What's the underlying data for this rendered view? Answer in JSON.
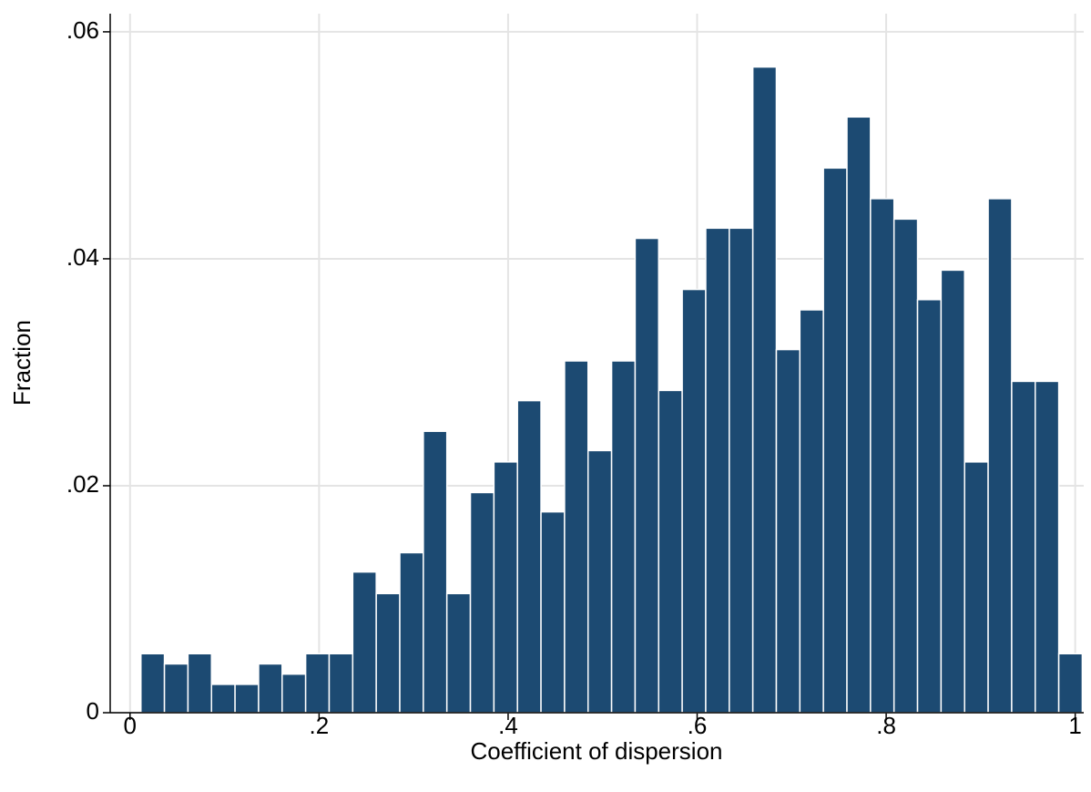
{
  "chart_data": {
    "type": "histogram",
    "xlabel": "Coefficient of dispersion",
    "ylabel": "Fraction",
    "bins": [
      0.0115,
      0.0364,
      0.0613,
      0.0862,
      0.1111,
      0.136,
      0.1609,
      0.1858,
      0.2107,
      0.2356,
      0.2605,
      0.2854,
      0.3103,
      0.3352,
      0.3601,
      0.385,
      0.4099,
      0.4348,
      0.4597,
      0.4846,
      0.5095,
      0.5344,
      0.5593,
      0.5842,
      0.6091,
      0.634,
      0.6589,
      0.6838,
      0.7087,
      0.7336,
      0.7585,
      0.7834,
      0.8083,
      0.8332,
      0.8581,
      0.883,
      0.9079,
      0.9328,
      0.9577,
      0.9826,
      1.0075
    ],
    "values": [
      0.0052,
      0.0043,
      0.0052,
      0.0025,
      0.0025,
      0.0043,
      0.0034,
      0.0052,
      0.0052,
      0.0124,
      0.0105,
      0.0141,
      0.0248,
      0.0105,
      0.0194,
      0.0221,
      0.0275,
      0.0177,
      0.031,
      0.0231,
      0.031,
      0.0418,
      0.0284,
      0.0373,
      0.0427,
      0.0427,
      0.0569,
      0.032,
      0.0355,
      0.048,
      0.0525,
      0.0453,
      0.0435,
      0.0364,
      0.039,
      0.0221,
      0.0453,
      0.0292,
      0.0292,
      0.0052
    ],
    "color": "#1c4a72",
    "xlim": [
      -0.021,
      1.009
    ],
    "ylim": [
      0,
      0.0616
    ],
    "xticks": [
      0,
      {
        "value": 0.2,
        "label": ".2"
      },
      {
        "value": 0.4,
        "label": ".4"
      },
      {
        "value": 0.6,
        "label": ".6"
      },
      {
        "value": 0.8,
        "label": ".8"
      },
      1
    ],
    "yticks": [
      0,
      {
        "value": 0.02,
        "label": ".02"
      },
      {
        "value": 0.04,
        "label": ".04"
      },
      {
        "value": 0.06,
        "label": ".06"
      }
    ],
    "grid": true
  }
}
